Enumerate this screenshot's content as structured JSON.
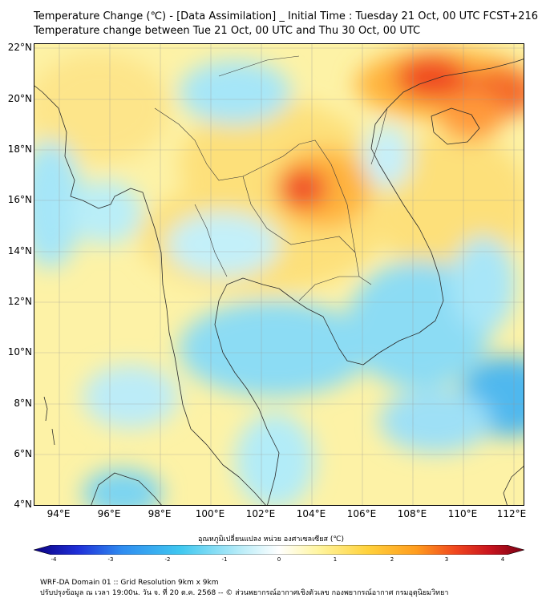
{
  "title_line1": "Temperature Change (℃) - [Data Assimilation] _ Initial Time : Tuesday 21 Oct, 00 UTC FCST+216",
  "title_line2": "Temperature change between Tue 21 Oct, 00 UTC and Thu 30 Oct, 00 UTC",
  "lat_labels": [
    "22°N",
    "20°N",
    "18°N",
    "16°N",
    "14°N",
    "12°N",
    "10°N",
    "8°N",
    "6°N",
    "4°N"
  ],
  "lon_labels": [
    "94°E",
    "96°E",
    "98°E",
    "100°E",
    "102°E",
    "104°E",
    "106°E",
    "108°E",
    "110°E",
    "112°E"
  ],
  "map_extent": {
    "lon": [
      93.0,
      112.5
    ],
    "lat": [
      4.0,
      22.2
    ]
  },
  "colorbar": {
    "title": "อุณหภูมิเปลี่ยนแปลง หน่วย องศาเซลเซียส (℃)",
    "ticks": [
      "-4",
      "-3",
      "-2",
      "-1",
      "0",
      "1",
      "2",
      "3",
      "4"
    ],
    "range": [
      -4,
      4
    ],
    "colors": [
      "#0b0080",
      "#1f2fd8",
      "#2f8cf0",
      "#40c8f0",
      "#b8ecf8",
      "#ffffff",
      "#fff5a0",
      "#ffd23c",
      "#ff9c1e",
      "#f0461e",
      "#c8141e",
      "#780014"
    ]
  },
  "footer_line1": "WRF-DA Domain 01 :: Grid Resolution 9km x 9km",
  "footer_line2": "ปรับปรุงข้อมูล ณ เวลา 19:00น. วัน จ. ที่ 20 ต.ค. 2568 -- © ส่วนพยากรณ์อากาศเชิงตัวเลข กองพยากรณ์อากาศ กรมอุตุนิยมวิทยา"
}
